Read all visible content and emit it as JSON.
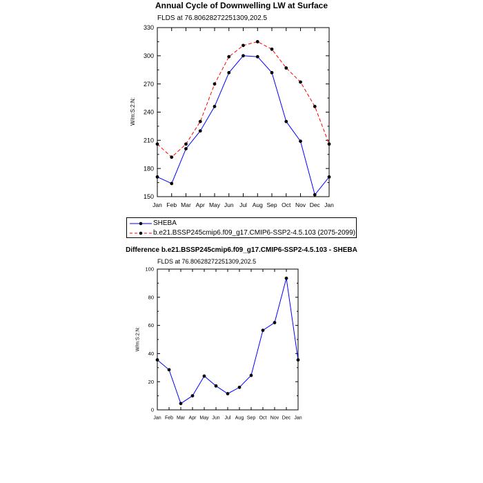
{
  "chart_data": [
    {
      "type": "line",
      "title": "Annual Cycle of Downwelling LW at Surface",
      "subtitle": "FLDS at 76.80628272251309,202.5",
      "ylabel": "W/m:S:2:N:",
      "categories": [
        "Jan",
        "Feb",
        "Mar",
        "Apr",
        "May",
        "Jun",
        "Jul",
        "Aug",
        "Sep",
        "Oct",
        "Nov",
        "Dec",
        "Jan"
      ],
      "ylim": [
        150,
        330
      ],
      "yticks": [
        150,
        180,
        210,
        240,
        270,
        300,
        330
      ],
      "series": [
        {
          "name": "SHEBA",
          "color": "#0000ff",
          "style": "solid",
          "values": [
            171,
            164,
            201,
            220,
            246,
            282,
            300,
            299,
            282,
            230,
            209,
            152,
            171
          ]
        },
        {
          "name": "b.e21.BSSP245cmip6.f09_g17.CMIP6-SSP2-4.5.103 (2075-2099)",
          "color": "#ff0000",
          "style": "dashed",
          "values": [
            206,
            192,
            206,
            230,
            270,
            299,
            311,
            315,
            307,
            287,
            272,
            246,
            206
          ]
        }
      ]
    },
    {
      "type": "line",
      "title": "Difference b.e21.BSSP245cmip6.f09_g17.CMIP6-SSP2-4.5.103 - SHEBA",
      "subtitle": "FLDS at 76.80628272251309,202.5",
      "ylabel": "W/m:S:2:N:",
      "categories": [
        "Jan",
        "Feb",
        "Mar",
        "Apr",
        "May",
        "Jun",
        "Jul",
        "Aug",
        "Sep",
        "Oct",
        "Nov",
        "Dec",
        "Jan"
      ],
      "ylim": [
        0,
        100
      ],
      "yticks": [
        0,
        20,
        40,
        60,
        80,
        100
      ],
      "series": [
        {
          "color": "#0000ff",
          "style": "solid",
          "values": [
            35.5,
            28.5,
            4.5,
            10,
            24,
            17,
            11.5,
            16,
            24.5,
            56.5,
            62,
            93.5,
            35.5
          ]
        }
      ]
    }
  ]
}
